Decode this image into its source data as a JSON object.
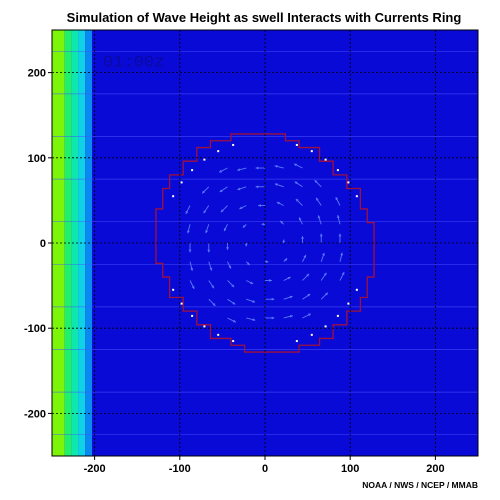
{
  "chart_data": {
    "type": "heatmap",
    "title": "Simulation of Wave Height as swell Interacts with Currents Ring",
    "timestamp": "01:00z",
    "credit": "NOAA / NWS / NCEP / MMAB",
    "xlim": [
      -250,
      250
    ],
    "ylim": [
      -250,
      250
    ],
    "x_ticks": [
      -200,
      -100,
      0,
      100,
      200
    ],
    "y_ticks": [
      200,
      100,
      0,
      -100,
      -200
    ],
    "x_tick_labels": [
      "-200",
      "-100",
      "0",
      "100",
      "200"
    ],
    "y_tick_labels": [
      "200",
      "100",
      "0",
      "-100",
      "-200"
    ],
    "grid": true,
    "background_color": "#0a0ad6",
    "swell_bands": [
      {
        "x0": -250,
        "x1": -235,
        "color": "#7cf50a"
      },
      {
        "x0": -235,
        "x1": -227,
        "color": "#20f06a"
      },
      {
        "x0": -227,
        "x1": -219,
        "color": "#10e6b0"
      },
      {
        "x0": -219,
        "x1": -211,
        "color": "#10d2e6"
      },
      {
        "x0": -211,
        "x1": -203,
        "color": "#0a8af0"
      }
    ],
    "ring": {
      "center": [
        0,
        0
      ],
      "radius": 127,
      "outline_color": "#a0103c"
    },
    "vector_color": "#5a78ff"
  }
}
